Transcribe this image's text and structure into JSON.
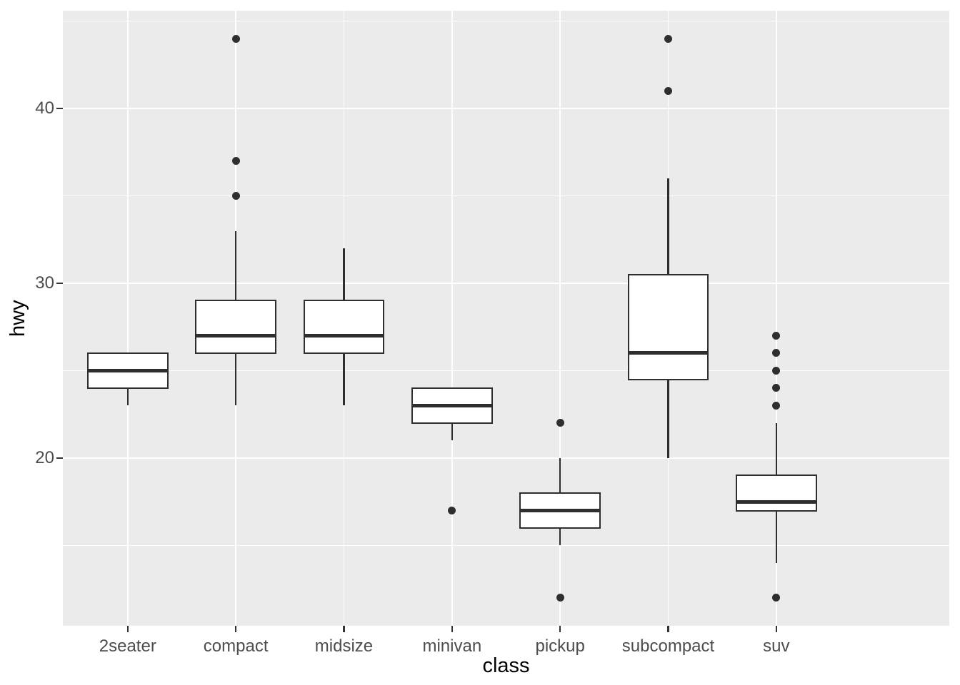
{
  "chart_data": {
    "type": "boxplot",
    "title": "",
    "xlabel": "class",
    "ylabel": "hwy",
    "categories": [
      "2seater",
      "compact",
      "midsize",
      "minivan",
      "pickup",
      "subcompact",
      "suv"
    ],
    "series": [
      {
        "name": "2seater",
        "whisker_low": 23,
        "q1": 24,
        "median": 25,
        "q3": 26,
        "whisker_high": 26,
        "outliers": []
      },
      {
        "name": "compact",
        "whisker_low": 23,
        "q1": 26,
        "median": 27,
        "q3": 29,
        "whisker_high": 33,
        "outliers": [
          35,
          37,
          44
        ]
      },
      {
        "name": "midsize",
        "whisker_low": 23,
        "q1": 26,
        "median": 27,
        "q3": 29,
        "whisker_high": 32,
        "outliers": []
      },
      {
        "name": "minivan",
        "whisker_low": 21,
        "q1": 22,
        "median": 23,
        "q3": 24,
        "whisker_high": 24,
        "outliers": [
          17
        ]
      },
      {
        "name": "pickup",
        "whisker_low": 15,
        "q1": 16,
        "median": 17,
        "q3": 18,
        "whisker_high": 20,
        "outliers": [
          22,
          12
        ]
      },
      {
        "name": "subcompact",
        "whisker_low": 20,
        "q1": 24.5,
        "median": 26,
        "q3": 30.5,
        "whisker_high": 36,
        "outliers": [
          44,
          41
        ]
      },
      {
        "name": "suv",
        "whisker_low": 14,
        "q1": 17,
        "median": 17.5,
        "q3": 19,
        "whisker_high": 22,
        "outliers": [
          27,
          26,
          25,
          24,
          23,
          12
        ]
      }
    ],
    "y_axis": {
      "tick_labels": [
        "20",
        "30",
        "40"
      ],
      "major_ticks": [
        20,
        30,
        40
      ],
      "minor_ticks": [
        15,
        25,
        35,
        45
      ],
      "range": [
        10.4,
        45.6
      ]
    },
    "x_axis": {
      "tick_labels": [
        "2seater",
        "compact",
        "midsize",
        "minivan",
        "pickup",
        "subcompact",
        "suv"
      ]
    },
    "grid": "on",
    "legend": "none",
    "styles": {
      "panel_bg": "#EBEBEB",
      "grid_color": "#FFFFFF",
      "stroke_color": "#2E2E2E",
      "box_fill": "#FFFFFF",
      "tick_mark_color": "#333333",
      "tick_text_color": "#4D4D4D",
      "axis_title_color": "#000000"
    }
  }
}
